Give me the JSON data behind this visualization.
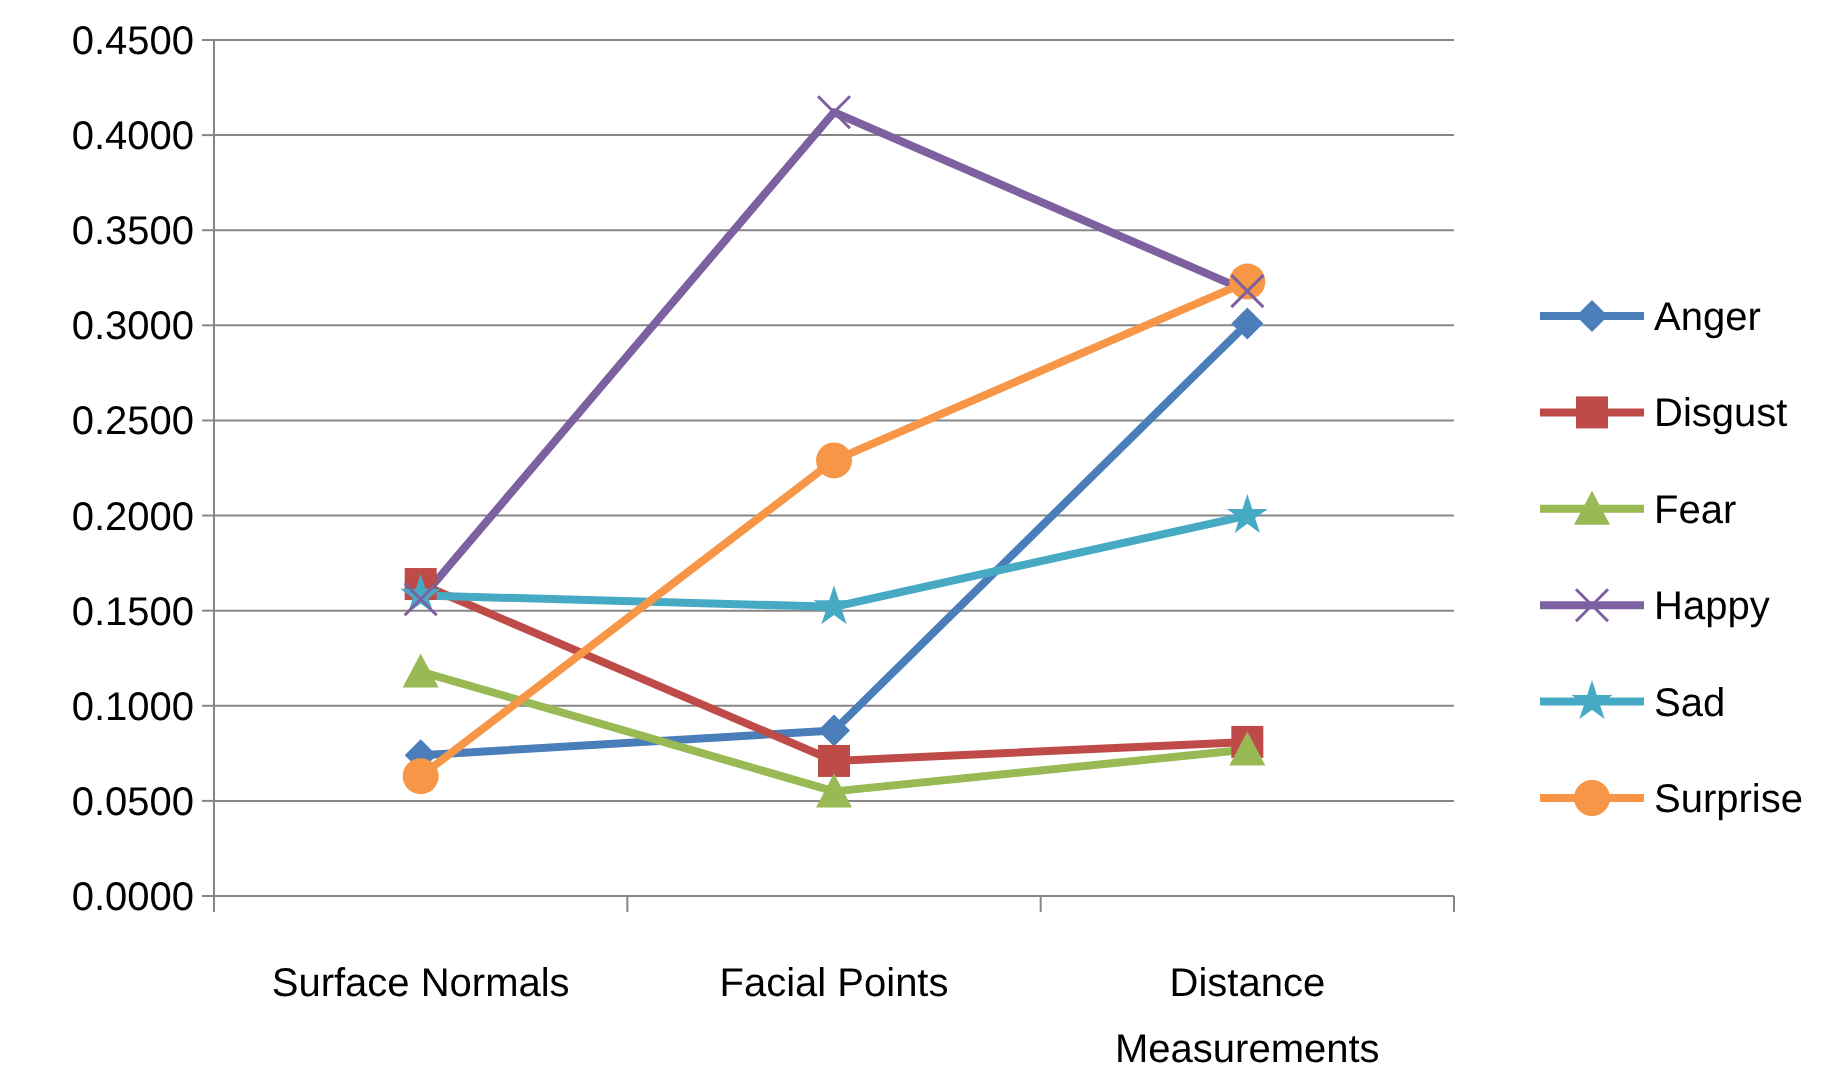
{
  "chart_data": {
    "type": "line",
    "categories": [
      "Surface Normals",
      "Facial Points",
      "Distance Measurements"
    ],
    "series": [
      {
        "name": "Anger",
        "color": "#4a7ebb",
        "marker": "diamond",
        "values": [
          0.074,
          0.087,
          0.301
        ]
      },
      {
        "name": "Disgust",
        "color": "#be4b48",
        "marker": "square",
        "values": [
          0.164,
          0.071,
          0.081
        ]
      },
      {
        "name": "Fear",
        "color": "#98b954",
        "marker": "triangle",
        "values": [
          0.118,
          0.055,
          0.077
        ]
      },
      {
        "name": "Happy",
        "color": "#7d60a0",
        "marker": "cross",
        "values": [
          0.156,
          0.412,
          0.318
        ]
      },
      {
        "name": "Sad",
        "color": "#46aac5",
        "marker": "star",
        "values": [
          0.158,
          0.152,
          0.2
        ]
      },
      {
        "name": "Surprise",
        "color": "#f79646",
        "marker": "circle",
        "values": [
          0.063,
          0.229,
          0.323
        ]
      }
    ],
    "ylim": [
      0,
      0.45
    ],
    "yticks": [
      {
        "value": 0,
        "label": "0.0000"
      },
      {
        "value": 0.05,
        "label": "0.0500"
      },
      {
        "value": 0.1,
        "label": "0.1000"
      },
      {
        "value": 0.15,
        "label": "0.1500"
      },
      {
        "value": 0.2,
        "label": "0.2000"
      },
      {
        "value": 0.25,
        "label": "0.2500"
      },
      {
        "value": 0.3,
        "label": "0.3000"
      },
      {
        "value": 0.35,
        "label": "0.3500"
      },
      {
        "value": 0.4,
        "label": "0.4000"
      },
      {
        "value": 0.45,
        "label": "0.4500"
      }
    ],
    "grid": "y",
    "legend": "right",
    "line_style": "solid"
  }
}
